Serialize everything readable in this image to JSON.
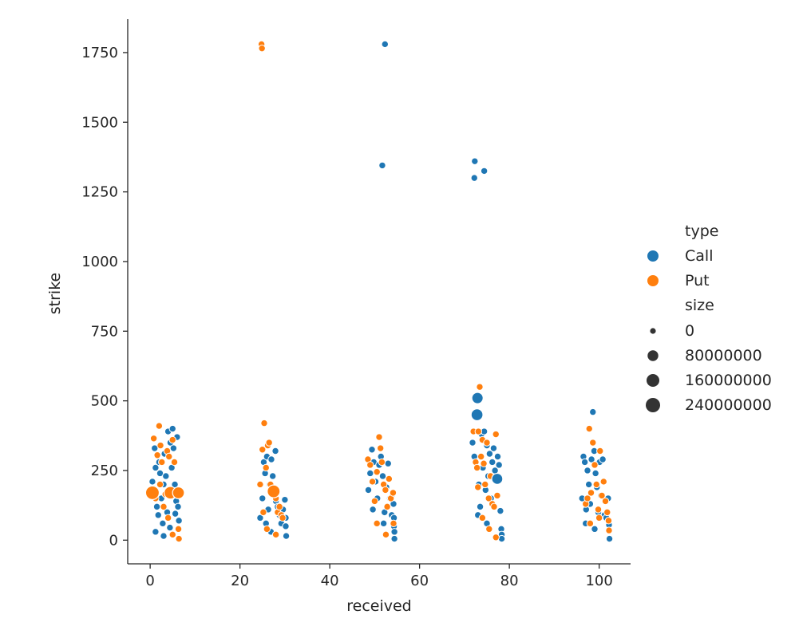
{
  "chart_data": {
    "type": "scatter",
    "title": "",
    "xlabel": "received",
    "ylabel": "strike",
    "xlim": [
      -5,
      107
    ],
    "ylim": [
      -85,
      1870
    ],
    "xticks": [
      0,
      20,
      40,
      60,
      80,
      100
    ],
    "xtick_labels": [
      "0",
      "20",
      "40",
      "60",
      "80",
      "100"
    ],
    "yticks": [
      0,
      250,
      500,
      750,
      1000,
      1250,
      1500,
      1750
    ],
    "ytick_labels": [
      "0",
      "250",
      "500",
      "750",
      "1000",
      "1250",
      "1500",
      "1750"
    ],
    "grid": false,
    "legend": {
      "placement": "right",
      "hue_title": "type",
      "hue_entries": [
        {
          "label": "Call",
          "color": "#1f77b4"
        },
        {
          "label": "Put",
          "color": "#ff7f0e"
        }
      ],
      "size_title": "size",
      "size_entries": [
        {
          "label": "0",
          "size": 0
        },
        {
          "label": "80000000",
          "size": 80000000
        },
        {
          "label": "160000000",
          "size": 160000000
        },
        {
          "label": "240000000",
          "size": 240000000
        }
      ]
    },
    "series": [
      {
        "name": "Call",
        "color": "#1f77b4",
        "points": [
          [
            0.5,
            210
          ],
          [
            0.8,
            185
          ],
          [
            1.0,
            330
          ],
          [
            1.2,
            260
          ],
          [
            1.5,
            120
          ],
          [
            1.8,
            90
          ],
          [
            2.0,
            280
          ],
          [
            2.2,
            240
          ],
          [
            2.5,
            150
          ],
          [
            2.8,
            60
          ],
          [
            3.0,
            200
          ],
          [
            3.2,
            310
          ],
          [
            3.5,
            230
          ],
          [
            3.8,
            100
          ],
          [
            4.0,
            390
          ],
          [
            4.2,
            180
          ],
          [
            4.5,
            350
          ],
          [
            4.8,
            260
          ],
          [
            5.0,
            400
          ],
          [
            5.2,
            330
          ],
          [
            5.5,
            200
          ],
          [
            5.8,
            140
          ],
          [
            6.0,
            370
          ],
          [
            6.2,
            120
          ],
          [
            6.4,
            70
          ],
          [
            1.2,
            30
          ],
          [
            3.0,
            15
          ],
          [
            4.4,
            45
          ],
          [
            5.6,
            95
          ],
          [
            24.5,
            80
          ],
          [
            25.0,
            150
          ],
          [
            25.3,
            280
          ],
          [
            25.6,
            240
          ],
          [
            26.0,
            300
          ],
          [
            26.3,
            110
          ],
          [
            26.6,
            200
          ],
          [
            27.0,
            290
          ],
          [
            27.3,
            230
          ],
          [
            27.6,
            160
          ],
          [
            28.0,
            140
          ],
          [
            28.4,
            120
          ],
          [
            28.8,
            90
          ],
          [
            29.2,
            60
          ],
          [
            29.6,
            110
          ],
          [
            30.0,
            145
          ],
          [
            30.2,
            80
          ],
          [
            30.2,
            50
          ],
          [
            30.3,
            15
          ],
          [
            27.9,
            320
          ],
          [
            25.8,
            60
          ],
          [
            26.9,
            30
          ],
          [
            48.6,
            180
          ],
          [
            49.0,
            240
          ],
          [
            49.4,
            325
          ],
          [
            49.8,
            280
          ],
          [
            50.2,
            210
          ],
          [
            50.6,
            150
          ],
          [
            51.0,
            270
          ],
          [
            51.4,
            300
          ],
          [
            51.8,
            230
          ],
          [
            52.2,
            100
          ],
          [
            52.6,
            190
          ],
          [
            53.0,
            275
          ],
          [
            53.4,
            150
          ],
          [
            53.8,
            90
          ],
          [
            54.0,
            165
          ],
          [
            54.2,
            130
          ],
          [
            54.3,
            80
          ],
          [
            54.3,
            50
          ],
          [
            54.4,
            30
          ],
          [
            54.4,
            5
          ],
          [
            51.7,
            1345
          ],
          [
            52.3,
            1780
          ],
          [
            49.6,
            110
          ],
          [
            52.0,
            60
          ],
          [
            71.8,
            350
          ],
          [
            72.2,
            300
          ],
          [
            72.6,
            450
          ],
          [
            72.9,
            510
          ],
          [
            73.2,
            200
          ],
          [
            73.5,
            120
          ],
          [
            73.8,
            380
          ],
          [
            74.1,
            260
          ],
          [
            74.4,
            390
          ],
          [
            74.7,
            180
          ],
          [
            75.0,
            340
          ],
          [
            75.3,
            230
          ],
          [
            75.6,
            310
          ],
          [
            75.9,
            150
          ],
          [
            76.2,
            280
          ],
          [
            76.5,
            330
          ],
          [
            76.8,
            250
          ],
          [
            77.1,
            220
          ],
          [
            77.4,
            300
          ],
          [
            77.7,
            270
          ],
          [
            78.0,
            105
          ],
          [
            78.2,
            40
          ],
          [
            78.3,
            20
          ],
          [
            78.3,
            5
          ],
          [
            72.2,
            1300
          ],
          [
            72.3,
            1360
          ],
          [
            74.4,
            1325
          ],
          [
            73.0,
            90
          ],
          [
            75.0,
            60
          ],
          [
            96.2,
            150
          ],
          [
            96.5,
            300
          ],
          [
            96.8,
            280
          ],
          [
            97.1,
            110
          ],
          [
            97.4,
            250
          ],
          [
            97.7,
            200
          ],
          [
            98.0,
            130
          ],
          [
            98.3,
            290
          ],
          [
            98.6,
            460
          ],
          [
            98.9,
            320
          ],
          [
            99.2,
            240
          ],
          [
            99.5,
            190
          ],
          [
            99.8,
            100
          ],
          [
            100.1,
            280
          ],
          [
            100.4,
            160
          ],
          [
            100.8,
            290
          ],
          [
            101.2,
            90
          ],
          [
            101.6,
            80
          ],
          [
            102.0,
            150
          ],
          [
            102.2,
            55
          ],
          [
            102.3,
            5
          ],
          [
            97.0,
            60
          ],
          [
            99.0,
            40
          ]
        ]
      },
      {
        "name": "Put",
        "color": "#ff7f0e",
        "points": [
          [
            0.3,
            170
          ],
          [
            0.8,
            365
          ],
          [
            1.2,
            150
          ],
          [
            1.6,
            305
          ],
          [
            2.0,
            410
          ],
          [
            2.3,
            340
          ],
          [
            2.6,
            280
          ],
          [
            3.0,
            120
          ],
          [
            3.4,
            165
          ],
          [
            3.8,
            320
          ],
          [
            4.2,
            300
          ],
          [
            4.6,
            170
          ],
          [
            5.0,
            360
          ],
          [
            5.4,
            280
          ],
          [
            5.8,
            170
          ],
          [
            6.2,
            170
          ],
          [
            6.3,
            40
          ],
          [
            6.4,
            5
          ],
          [
            2.2,
            200
          ],
          [
            4.0,
            80
          ],
          [
            5.0,
            20
          ],
          [
            24.8,
            1780
          ],
          [
            24.9,
            1765
          ],
          [
            24.5,
            200
          ],
          [
            25.0,
            325
          ],
          [
            25.4,
            420
          ],
          [
            25.8,
            260
          ],
          [
            26.2,
            340
          ],
          [
            26.5,
            350
          ],
          [
            26.8,
            200
          ],
          [
            27.2,
            175
          ],
          [
            27.6,
            180
          ],
          [
            28.0,
            150
          ],
          [
            28.4,
            100
          ],
          [
            28.8,
            120
          ],
          [
            29.2,
            90
          ],
          [
            29.5,
            80
          ],
          [
            25.2,
            100
          ],
          [
            26.0,
            40
          ],
          [
            28.0,
            20
          ],
          [
            48.5,
            290
          ],
          [
            49.0,
            270
          ],
          [
            49.5,
            210
          ],
          [
            50.0,
            140
          ],
          [
            50.5,
            245
          ],
          [
            51.0,
            370
          ],
          [
            51.3,
            330
          ],
          [
            51.6,
            280
          ],
          [
            52.0,
            200
          ],
          [
            52.4,
            180
          ],
          [
            52.8,
            120
          ],
          [
            53.2,
            220
          ],
          [
            53.6,
            150
          ],
          [
            54.1,
            170
          ],
          [
            54.2,
            60
          ],
          [
            50.5,
            60
          ],
          [
            52.5,
            20
          ],
          [
            72.0,
            390
          ],
          [
            72.5,
            280
          ],
          [
            72.8,
            260
          ],
          [
            73.1,
            390
          ],
          [
            73.4,
            550
          ],
          [
            73.7,
            300
          ],
          [
            74.0,
            360
          ],
          [
            74.3,
            275
          ],
          [
            74.6,
            200
          ],
          [
            75.0,
            350
          ],
          [
            75.4,
            150
          ],
          [
            75.8,
            230
          ],
          [
            76.2,
            130
          ],
          [
            76.6,
            120
          ],
          [
            77.0,
            380
          ],
          [
            77.3,
            160
          ],
          [
            73.0,
            190
          ],
          [
            74.0,
            80
          ],
          [
            75.5,
            40
          ],
          [
            77.0,
            10
          ],
          [
            97.0,
            130
          ],
          [
            97.4,
            150
          ],
          [
            97.8,
            400
          ],
          [
            98.2,
            170
          ],
          [
            98.6,
            350
          ],
          [
            99.0,
            270
          ],
          [
            99.4,
            200
          ],
          [
            99.8,
            110
          ],
          [
            100.2,
            320
          ],
          [
            100.6,
            160
          ],
          [
            101.0,
            210
          ],
          [
            101.4,
            140
          ],
          [
            101.8,
            100
          ],
          [
            102.1,
            70
          ],
          [
            102.2,
            35
          ],
          [
            98.0,
            60
          ],
          [
            100.0,
            80
          ]
        ]
      }
    ],
    "large_markers": [
      {
        "series": "Put",
        "x": 0.5,
        "y": 170,
        "size": 200000000
      },
      {
        "series": "Put",
        "x": 4.5,
        "y": 170,
        "size": 150000000
      },
      {
        "series": "Put",
        "x": 6.3,
        "y": 170,
        "size": 120000000
      },
      {
        "series": "Put",
        "x": 27.5,
        "y": 175,
        "size": 160000000
      },
      {
        "series": "Call",
        "x": 72.8,
        "y": 450,
        "size": 120000000
      },
      {
        "series": "Call",
        "x": 72.9,
        "y": 510,
        "size": 100000000
      },
      {
        "series": "Call",
        "x": 77.3,
        "y": 220,
        "size": 90000000
      }
    ]
  }
}
